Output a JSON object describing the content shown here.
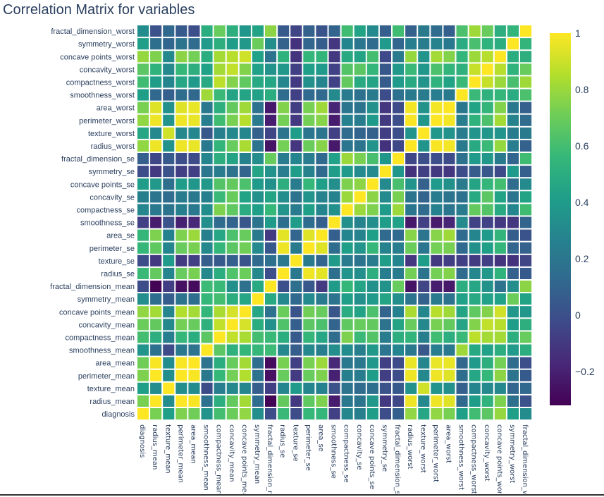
{
  "chart_data": {
    "type": "heatmap",
    "title": "Correlation Matrix for variables",
    "variables": [
      "diagnosis",
      "radius_mean",
      "texture_mean",
      "perimeter_mean",
      "area_mean",
      "smoothness_mean",
      "compactness_mean",
      "concavity_mean",
      "concave points_mean",
      "symmetry_mean",
      "fractal_dimension_mean",
      "radius_se",
      "texture_se",
      "perimeter_se",
      "area_se",
      "smoothness_se",
      "compactness_se",
      "concavity_se",
      "concave points_se",
      "symmetry_se",
      "fractal_dimension_se",
      "radius_worst",
      "texture_worst",
      "perimeter_worst",
      "area_worst",
      "smoothness_worst",
      "compactness_worst",
      "concavity_worst",
      "concave points_worst",
      "symmetry_worst",
      "fractal_dimension_worst"
    ],
    "x_tick_labels": [
      "diagnosis",
      "radius_mean",
      "texture_mean",
      "perimeter_mean",
      "area_mean",
      "smoothness_mean",
      "compactness_mean",
      "concavity_mean",
      "concave points_mea",
      "symmetry_mean",
      "fractal_dimension_m",
      "radius_se",
      "texture_se",
      "perimeter_se",
      "area_se",
      "smoothness_se",
      "compactness_se",
      "concavity_se",
      "concave points_se",
      "symmetry_se",
      "fractal_dimension_s",
      "radius_worst",
      "texture_worst",
      "perimeter_worst",
      "area_worst",
      "smoothness_worst",
      "compactness_worst",
      "concavity_worst",
      "concave points_wors",
      "symmetry_worst",
      "fractal_dimension_w"
    ],
    "values": [
      [
        1,
        0.73,
        0.42,
        0.74,
        0.71,
        0.36,
        0.6,
        0.7,
        0.78,
        0.33,
        -0.01,
        0.57,
        -0.01,
        0.56,
        0.55,
        -0.07,
        0.29,
        0.25,
        0.41,
        -0.01,
        0.08,
        0.78,
        0.46,
        0.78,
        0.73,
        0.42,
        0.59,
        0.66,
        0.79,
        0.42,
        0.32
      ],
      [
        0.73,
        1,
        0.32,
        1,
        0.99,
        0.17,
        0.51,
        0.68,
        0.82,
        0.15,
        -0.31,
        0.68,
        -0.1,
        0.67,
        0.74,
        -0.22,
        0.21,
        0.19,
        0.38,
        -0.1,
        -0.04,
        0.97,
        0.3,
        0.97,
        0.94,
        0.12,
        0.41,
        0.53,
        0.74,
        0.16,
        0.01
      ],
      [
        0.42,
        0.32,
        1,
        0.33,
        0.32,
        -0.02,
        0.24,
        0.3,
        0.29,
        0.07,
        -0.08,
        0.28,
        0.39,
        0.28,
        0.26,
        0.01,
        0.19,
        0.14,
        0.16,
        0.01,
        0.05,
        0.35,
        0.91,
        0.36,
        0.34,
        0.08,
        0.28,
        0.3,
        0.3,
        0.11,
        0.12
      ],
      [
        0.74,
        1,
        0.33,
        1,
        0.99,
        0.21,
        0.56,
        0.72,
        0.85,
        0.18,
        -0.26,
        0.69,
        -0.09,
        0.69,
        0.74,
        -0.2,
        0.25,
        0.23,
        0.41,
        -0.08,
        -0.01,
        0.97,
        0.3,
        0.97,
        0.94,
        0.15,
        0.46,
        0.56,
        0.77,
        0.19,
        0.05
      ],
      [
        0.71,
        0.99,
        0.32,
        0.99,
        1,
        0.18,
        0.5,
        0.69,
        0.82,
        0.15,
        -0.28,
        0.73,
        -0.07,
        0.73,
        0.8,
        -0.17,
        0.21,
        0.21,
        0.37,
        -0.07,
        -0.02,
        0.96,
        0.29,
        0.96,
        0.96,
        0.12,
        0.39,
        0.51,
        0.72,
        0.14,
        0
      ],
      [
        0.36,
        0.17,
        -0.02,
        0.21,
        0.18,
        1,
        0.66,
        0.52,
        0.55,
        0.56,
        0.58,
        0.3,
        0.07,
        0.3,
        0.25,
        0.33,
        0.32,
        0.25,
        0.38,
        0.2,
        0.28,
        0.21,
        0.04,
        0.24,
        0.21,
        0.81,
        0.47,
        0.43,
        0.5,
        0.39,
        0.5
      ],
      [
        0.6,
        0.51,
        0.24,
        0.56,
        0.5,
        0.66,
        1,
        0.88,
        0.83,
        0.6,
        0.57,
        0.5,
        0.05,
        0.55,
        0.46,
        0.14,
        0.74,
        0.57,
        0.64,
        0.23,
        0.51,
        0.54,
        0.25,
        0.59,
        0.51,
        0.57,
        0.87,
        0.82,
        0.82,
        0.51,
        0.69
      ],
      [
        0.7,
        0.68,
        0.3,
        0.72,
        0.69,
        0.52,
        0.88,
        1,
        0.92,
        0.5,
        0.34,
        0.63,
        0.08,
        0.66,
        0.62,
        0.1,
        0.67,
        0.69,
        0.68,
        0.18,
        0.45,
        0.69,
        0.3,
        0.73,
        0.68,
        0.45,
        0.75,
        0.88,
        0.86,
        0.41,
        0.51
      ],
      [
        0.78,
        0.82,
        0.29,
        0.85,
        0.82,
        0.55,
        0.83,
        0.92,
        1,
        0.46,
        0.17,
        0.7,
        0.02,
        0.71,
        0.69,
        0.03,
        0.49,
        0.44,
        0.62,
        0.1,
        0.26,
        0.83,
        0.29,
        0.86,
        0.81,
        0.45,
        0.67,
        0.75,
        0.91,
        0.38,
        0.37
      ],
      [
        0.33,
        0.15,
        0.07,
        0.18,
        0.15,
        0.56,
        0.6,
        0.5,
        0.46,
        1,
        0.48,
        0.3,
        0.13,
        0.31,
        0.22,
        0.19,
        0.42,
        0.34,
        0.39,
        0.45,
        0.33,
        0.19,
        0.09,
        0.22,
        0.18,
        0.43,
        0.47,
        0.43,
        0.43,
        0.7,
        0.44
      ],
      [
        -0.01,
        -0.31,
        -0.08,
        -0.26,
        -0.28,
        0.58,
        0.57,
        0.34,
        0.17,
        0.48,
        1,
        0,
        0.16,
        0.04,
        -0.09,
        0.4,
        0.56,
        0.45,
        0.34,
        0.35,
        0.69,
        -0.25,
        -0.05,
        -0.21,
        -0.23,
        0.5,
        0.46,
        0.35,
        0.18,
        0.33,
        0.77
      ],
      [
        0.57,
        0.68,
        0.28,
        0.69,
        0.73,
        0.3,
        0.5,
        0.63,
        0.7,
        0.3,
        0,
        1,
        0.21,
        0.97,
        0.95,
        0.16,
        0.36,
        0.33,
        0.51,
        0.24,
        0.23,
        0.72,
        0.19,
        0.72,
        0.75,
        0.14,
        0.29,
        0.38,
        0.53,
        0.09,
        0.05
      ],
      [
        -0.01,
        -0.1,
        0.39,
        -0.09,
        -0.07,
        0.07,
        0.05,
        0.08,
        0.02,
        0.13,
        0.16,
        0.21,
        1,
        0.22,
        0.11,
        0.4,
        0.23,
        0.19,
        0.23,
        0.41,
        0.28,
        -0.11,
        0.41,
        -0.1,
        -0.08,
        -0.07,
        -0.09,
        -0.07,
        -0.12,
        -0.13,
        -0.05
      ],
      [
        0.56,
        0.67,
        0.28,
        0.69,
        0.73,
        0.3,
        0.55,
        0.66,
        0.71,
        0.31,
        0.04,
        0.97,
        0.22,
        1,
        0.94,
        0.15,
        0.42,
        0.36,
        0.56,
        0.27,
        0.24,
        0.7,
        0.2,
        0.72,
        0.73,
        0.13,
        0.34,
        0.42,
        0.55,
        0.11,
        0.09
      ],
      [
        0.55,
        0.74,
        0.26,
        0.74,
        0.8,
        0.25,
        0.46,
        0.62,
        0.69,
        0.22,
        -0.09,
        0.95,
        0.11,
        0.94,
        1,
        0.08,
        0.28,
        0.27,
        0.42,
        0.13,
        0.13,
        0.76,
        0.2,
        0.76,
        0.81,
        0.13,
        0.28,
        0.39,
        0.54,
        0.07,
        0.02
      ],
      [
        -0.07,
        -0.22,
        0.01,
        -0.2,
        -0.17,
        0.33,
        0.14,
        0.1,
        0.03,
        0.19,
        0.4,
        0.16,
        0.4,
        0.15,
        0.08,
        1,
        0.34,
        0.27,
        0.33,
        0.41,
        0.43,
        -0.23,
        -0.07,
        -0.22,
        -0.18,
        0.31,
        -0.06,
        -0.06,
        -0.1,
        -0.11,
        0.1
      ],
      [
        0.29,
        0.21,
        0.19,
        0.25,
        0.21,
        0.32,
        0.74,
        0.67,
        0.49,
        0.42,
        0.56,
        0.36,
        0.23,
        0.42,
        0.28,
        0.34,
        1,
        0.8,
        0.74,
        0.39,
        0.8,
        0.2,
        0.14,
        0.26,
        0.2,
        0.23,
        0.68,
        0.64,
        0.48,
        0.28,
        0.59
      ],
      [
        0.25,
        0.19,
        0.14,
        0.23,
        0.21,
        0.25,
        0.57,
        0.69,
        0.44,
        0.34,
        0.45,
        0.33,
        0.19,
        0.36,
        0.27,
        0.27,
        0.8,
        1,
        0.77,
        0.31,
        0.73,
        0.19,
        0.1,
        0.23,
        0.19,
        0.17,
        0.48,
        0.66,
        0.44,
        0.2,
        0.44
      ],
      [
        0.41,
        0.38,
        0.16,
        0.41,
        0.37,
        0.38,
        0.64,
        0.68,
        0.62,
        0.39,
        0.34,
        0.51,
        0.23,
        0.56,
        0.42,
        0.33,
        0.74,
        0.77,
        1,
        0.31,
        0.61,
        0.36,
        0.09,
        0.39,
        0.34,
        0.22,
        0.45,
        0.55,
        0.6,
        0.14,
        0.31
      ],
      [
        -0.01,
        -0.1,
        0.01,
        -0.08,
        -0.07,
        0.2,
        0.23,
        0.18,
        0.1,
        0.45,
        0.35,
        0.24,
        0.41,
        0.27,
        0.13,
        0.41,
        0.39,
        0.31,
        0.31,
        1,
        0.37,
        -0.13,
        -0.08,
        -0.1,
        -0.11,
        -0.01,
        0.06,
        0.04,
        -0.03,
        0.39,
        0.08
      ],
      [
        0.08,
        -0.04,
        0.05,
        -0.01,
        -0.02,
        0.28,
        0.51,
        0.45,
        0.26,
        0.33,
        0.69,
        0.23,
        0.28,
        0.24,
        0.13,
        0.43,
        0.8,
        0.73,
        0.61,
        0.37,
        1,
        -0.04,
        -0.0,
        -0.0,
        -0.02,
        0.17,
        0.39,
        0.38,
        0.22,
        0.11,
        0.59
      ],
      [
        0.78,
        0.97,
        0.35,
        0.97,
        0.96,
        0.21,
        0.54,
        0.69,
        0.83,
        0.19,
        -0.25,
        0.72,
        -0.11,
        0.7,
        0.76,
        -0.23,
        0.2,
        0.19,
        0.36,
        -0.13,
        -0.04,
        1,
        0.36,
        0.99,
        0.98,
        0.22,
        0.48,
        0.57,
        0.79,
        0.24,
        0.09
      ],
      [
        0.46,
        0.3,
        0.91,
        0.3,
        0.29,
        0.04,
        0.25,
        0.3,
        0.29,
        0.09,
        -0.05,
        0.19,
        0.41,
        0.2,
        0.2,
        -0.07,
        0.14,
        0.1,
        0.09,
        -0.08,
        -0.0,
        0.36,
        1,
        0.37,
        0.35,
        0.23,
        0.36,
        0.37,
        0.36,
        0.23,
        0.22
      ],
      [
        0.78,
        0.97,
        0.36,
        0.97,
        0.96,
        0.24,
        0.59,
        0.73,
        0.86,
        0.22,
        -0.21,
        0.72,
        -0.1,
        0.72,
        0.76,
        -0.22,
        0.26,
        0.23,
        0.39,
        -0.1,
        -0.0,
        0.99,
        0.37,
        1,
        0.98,
        0.24,
        0.53,
        0.62,
        0.82,
        0.27,
        0.14
      ],
      [
        0.73,
        0.94,
        0.34,
        0.94,
        0.96,
        0.21,
        0.51,
        0.68,
        0.81,
        0.18,
        -0.23,
        0.75,
        -0.08,
        0.73,
        0.81,
        -0.18,
        0.2,
        0.19,
        0.34,
        -0.11,
        -0.02,
        0.98,
        0.35,
        0.98,
        1,
        0.21,
        0.44,
        0.54,
        0.75,
        0.21,
        0.08
      ],
      [
        0.42,
        0.12,
        0.08,
        0.15,
        0.12,
        0.81,
        0.57,
        0.45,
        0.45,
        0.43,
        0.5,
        0.14,
        -0.07,
        0.13,
        0.13,
        0.31,
        0.23,
        0.17,
        0.22,
        -0.01,
        0.17,
        0.22,
        0.23,
        0.24,
        0.21,
        1,
        0.57,
        0.52,
        0.55,
        0.49,
        0.62
      ],
      [
        0.59,
        0.41,
        0.28,
        0.46,
        0.39,
        0.47,
        0.87,
        0.75,
        0.67,
        0.47,
        0.46,
        0.29,
        -0.09,
        0.34,
        0.28,
        -0.06,
        0.68,
        0.48,
        0.45,
        0.06,
        0.39,
        0.48,
        0.36,
        0.53,
        0.44,
        0.57,
        1,
        0.89,
        0.8,
        0.61,
        0.81
      ],
      [
        0.66,
        0.53,
        0.3,
        0.56,
        0.51,
        0.43,
        0.82,
        0.88,
        0.75,
        0.43,
        0.35,
        0.38,
        -0.07,
        0.42,
        0.39,
        -0.06,
        0.64,
        0.66,
        0.55,
        0.04,
        0.38,
        0.57,
        0.37,
        0.62,
        0.54,
        0.52,
        0.89,
        1,
        0.86,
        0.53,
        0.69
      ],
      [
        0.79,
        0.74,
        0.3,
        0.77,
        0.72,
        0.5,
        0.82,
        0.86,
        0.91,
        0.43,
        0.18,
        0.53,
        -0.12,
        0.55,
        0.54,
        -0.1,
        0.48,
        0.44,
        0.6,
        -0.03,
        0.22,
        0.79,
        0.36,
        0.82,
        0.75,
        0.55,
        0.8,
        0.86,
        1,
        0.5,
        0.51
      ],
      [
        0.42,
        0.16,
        0.11,
        0.19,
        0.14,
        0.39,
        0.51,
        0.41,
        0.38,
        0.7,
        0.33,
        0.09,
        -0.13,
        0.11,
        0.07,
        -0.11,
        0.28,
        0.2,
        0.14,
        0.39,
        0.11,
        0.24,
        0.23,
        0.27,
        0.21,
        0.49,
        0.61,
        0.53,
        0.5,
        1,
        0.54
      ],
      [
        0.32,
        0.01,
        0.12,
        0.05,
        0,
        0.5,
        0.69,
        0.51,
        0.37,
        0.44,
        0.77,
        0.05,
        -0.05,
        0.09,
        0.02,
        0.1,
        0.59,
        0.44,
        0.31,
        0.08,
        0.59,
        0.09,
        0.22,
        0.14,
        0.08,
        0.62,
        0.81,
        0.69,
        0.51,
        0.54,
        1
      ]
    ],
    "zlim": [
      -0.32,
      1
    ],
    "colorscale": "viridis",
    "colorbar_ticks": [
      1,
      0.8,
      0.6,
      0.4,
      0.2,
      0,
      -0.2
    ],
    "colorbar_tick_labels": [
      "1",
      "0.8",
      "0.6",
      "0.4",
      "0.2",
      "0",
      "−0.2"
    ],
    "grid_gap_color": "#ffffff"
  }
}
